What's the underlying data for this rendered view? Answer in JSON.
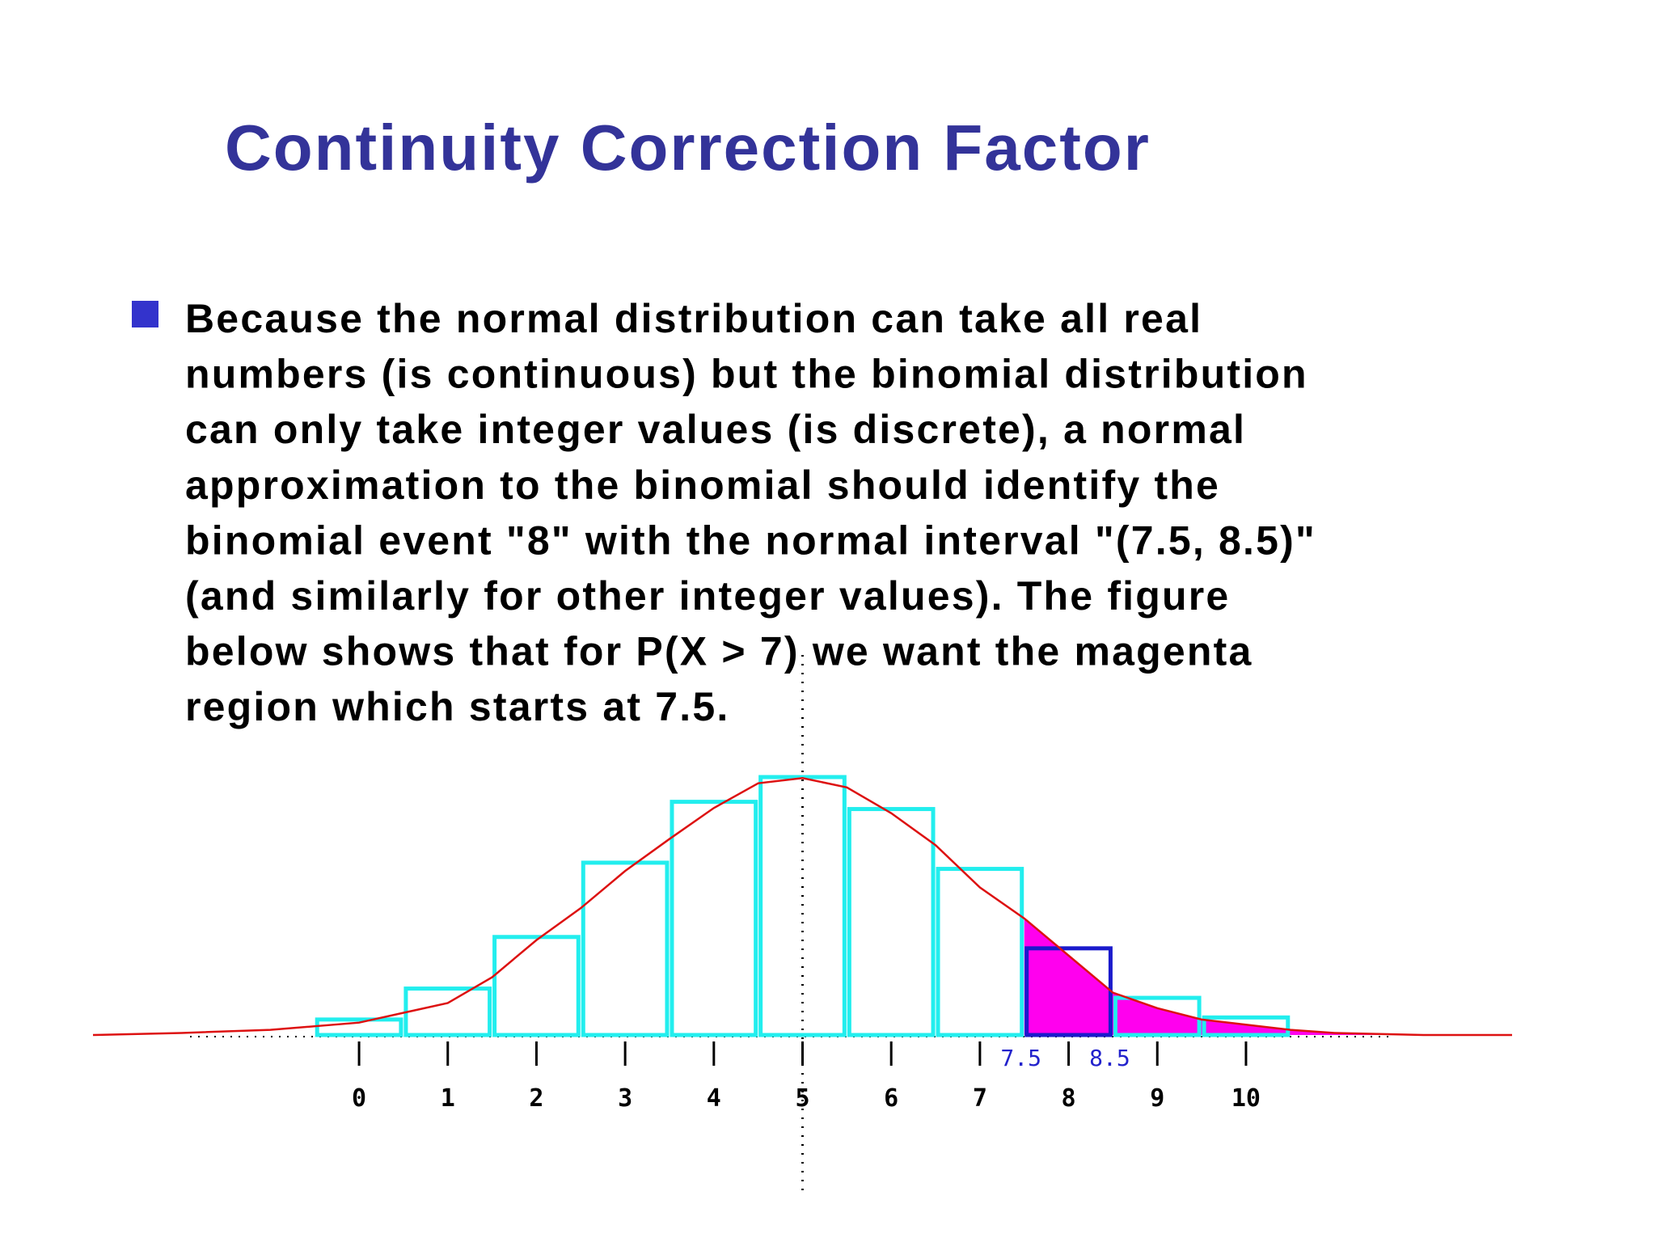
{
  "title": "Continuity Correction Factor",
  "bullet_lines": [
    "Because the normal distribution can take all real",
    "numbers (is continuous) but the binomial distribution",
    "can only take integer values (is discrete), a normal",
    "approximation to the binomial should identify the",
    "binomial event \"8\" with the normal interval \"(7.5, 8.5)\"",
    "(and similarly for other integer values). The figure",
    "below shows that for P(X > 7) we want the magenta",
    "region which starts at 7.5."
  ],
  "chart_data": {
    "type": "bar",
    "x": [
      0,
      1,
      2,
      3,
      4,
      5,
      6,
      7,
      8,
      9,
      10
    ],
    "values": [
      0.015,
      0.045,
      0.095,
      0.167,
      0.226,
      0.25,
      0.219,
      0.161,
      0.084,
      0.036,
      0.017
    ],
    "color": "#22eeee",
    "highlight_index": 8,
    "highlight_color": "#1a1acc",
    "curve": {
      "x": [
        -3,
        -2,
        -1,
        0,
        1,
        1.5,
        2,
        2.5,
        3,
        3.5,
        4,
        4.5,
        5,
        5.5,
        6,
        6.5,
        7,
        7.5,
        8,
        8.5,
        9,
        9.5,
        10,
        10.5,
        11,
        12,
        13
      ],
      "values": [
        0,
        0.002,
        0.005,
        0.012,
        0.031,
        0.056,
        0.092,
        0.123,
        0.159,
        0.19,
        0.22,
        0.244,
        0.249,
        0.24,
        0.215,
        0.184,
        0.143,
        0.113,
        0.077,
        0.041,
        0.026,
        0.015,
        0.01,
        0.005,
        0.002,
        0,
        0
      ],
      "color": "#dd1111"
    },
    "shade_color": "#ff00ee",
    "annotations": [
      7.5,
      8.5
    ],
    "xlim": [
      -3,
      13
    ],
    "ylim": [
      0,
      0.25
    ],
    "xticks": [
      0,
      1,
      2,
      3,
      4,
      5,
      6,
      7,
      8,
      9,
      10
    ]
  }
}
